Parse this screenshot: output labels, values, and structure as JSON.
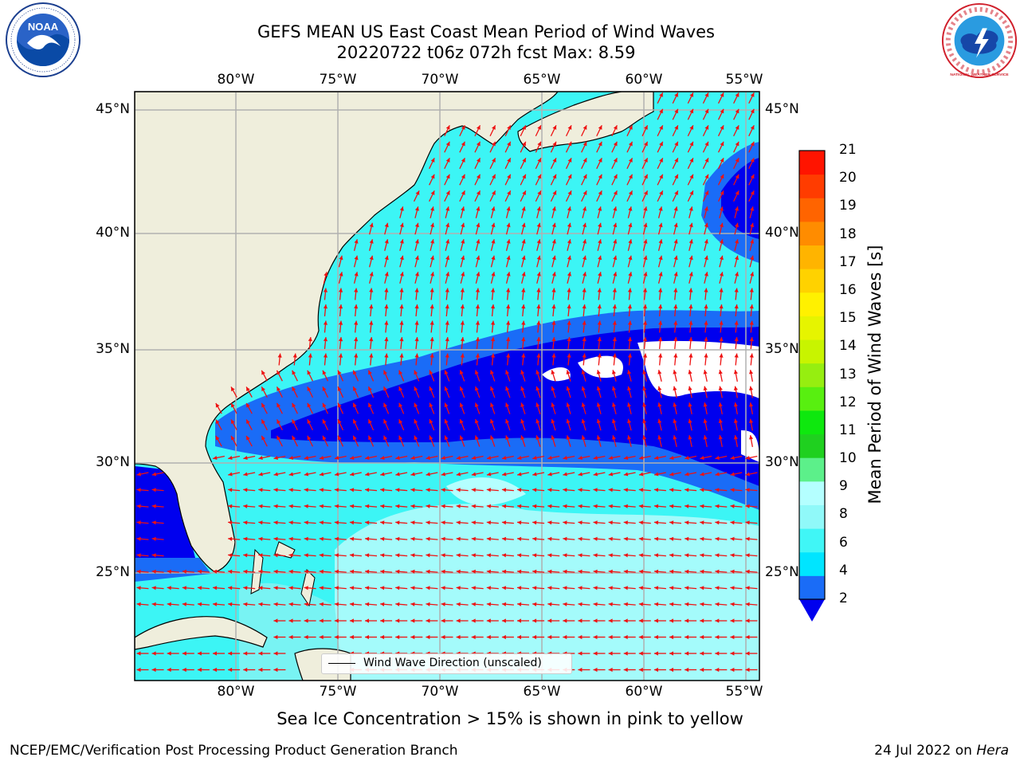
{
  "header": {
    "title_line1": "GEFS MEAN US East Coast Mean Period of Wind Waves",
    "title_line2": "20220722 t06z 072h fcst   Max: 8.59"
  },
  "map": {
    "region": "US East Coast / Western North Atlantic",
    "projection": "equirectangular",
    "extent": {
      "lon_min": -85,
      "lon_max": -54.3,
      "lat_min": 20.5,
      "lat_max": 45.9
    },
    "lon_ticks": [
      "80°W",
      "75°W",
      "70°W",
      "65°W",
      "60°W",
      "55°W"
    ],
    "lat_ticks": [
      "45°N",
      "40°N",
      "35°N",
      "30°N",
      "25°N"
    ],
    "colors": {
      "land": "#efeedc",
      "ocean_default": "#3cf5f5",
      "grid": "#b0b0b0",
      "arrows": "#ee1111",
      "coastline": "#000000"
    },
    "field_note": "Mean wave period shown by filled color bands; arrows show wind wave direction (unscaled)"
  },
  "legend": {
    "label": "Wind Wave Direction (unscaled)"
  },
  "colorbar": {
    "title": "Mean Period of Wind Waves [s]",
    "tick_labels": [
      "2",
      "4",
      "6",
      "8",
      "9",
      "10",
      "11",
      "12",
      "13",
      "14",
      "15",
      "16",
      "17",
      "18",
      "19",
      "20",
      "21"
    ],
    "band_colors": [
      "#1a6cf7",
      "#00e5ff",
      "#40f6f6",
      "#90f9f9",
      "#b4ffff",
      "#5cf08a",
      "#1fd01f",
      "#0ee80e",
      "#58ef10",
      "#96ee10",
      "#c8f400",
      "#e6f400",
      "#fff100",
      "#ffd200",
      "#ffb400",
      "#ff8c00",
      "#ff6400",
      "#ff3c00",
      "#ff1400"
    ],
    "under_color": "#0000ee"
  },
  "notes": {
    "sea_ice": "Sea Ice Concentration > 15% is shown in pink to yellow"
  },
  "footer": {
    "left": "NCEP/EMC/Verification Post Processing Product Generation Branch",
    "right_prefix": "24 Jul 2022 on ",
    "right_host": "Hera"
  },
  "logos": {
    "left": "NOAA",
    "right": "NATIONAL WEATHER SERVICE"
  }
}
